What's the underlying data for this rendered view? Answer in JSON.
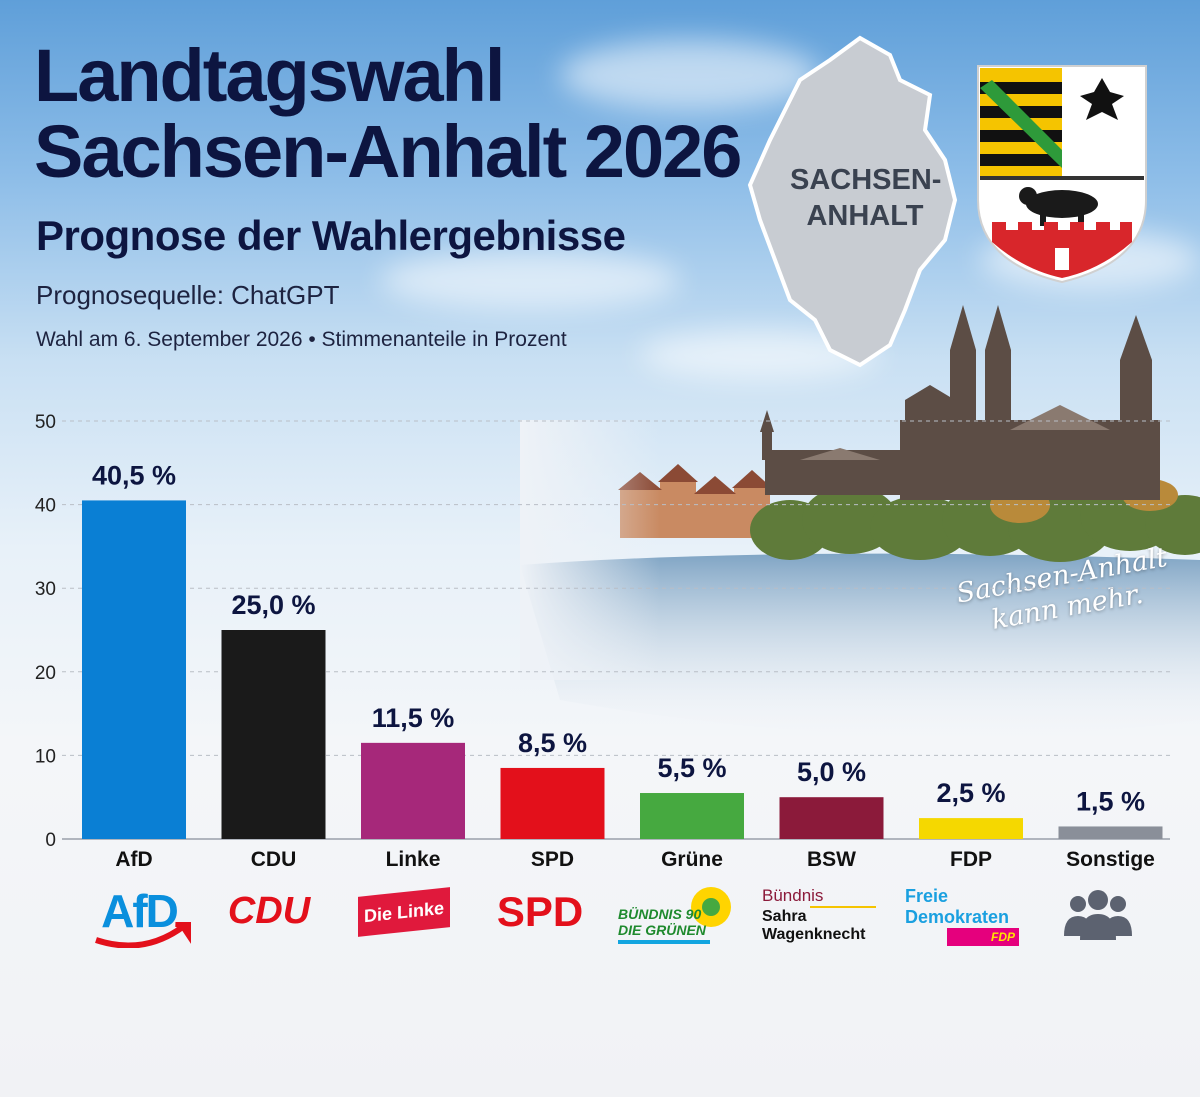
{
  "header": {
    "title_line1": "Landtagswahl",
    "title_line2": "Sachsen-Anhalt 2026",
    "subtitle": "Prognose der Wahlergebnisse",
    "source": "Prognosequelle: ChatGPT",
    "note": "Wahl am 6. September 2026 • Stimmenanteile in Prozent"
  },
  "map": {
    "label_line1": "SACHSEN-",
    "label_line2": "ANHALT"
  },
  "slogan": {
    "line1": "Sachsen-Anhalt",
    "line2": "kann mehr."
  },
  "logos": {
    "afd": "AfD",
    "cdu": "CDU",
    "linke": "Die Linke",
    "spd": "SPD",
    "gruene_line1": "BÜNDNIS 90",
    "gruene_line2": "DIE GRÜNEN",
    "bsw_line1": "Bündnis",
    "bsw_line2": "Sahra",
    "bsw_line3": "Wagenknecht",
    "fdp_line1": "Freie",
    "fdp_line2": "Demokraten",
    "fdp_line3": "FDP",
    "sonstige_icon": "people-group-icon"
  },
  "chart_data": {
    "type": "bar",
    "categories": [
      "AfD",
      "CDU",
      "Linke",
      "SPD",
      "Grüne",
      "BSW",
      "FDP",
      "Sonstige"
    ],
    "values": [
      40.5,
      25.0,
      11.5,
      8.5,
      5.5,
      5.0,
      2.5,
      1.5
    ],
    "data_labels": [
      "40,5 %",
      "25,0 %",
      "11,5 %",
      "8,5 %",
      "5,5 %",
      "5,0 %",
      "2,5 %",
      "1,5 %"
    ],
    "colors": [
      "#0a7fd4",
      "#1a1a1a",
      "#a6287a",
      "#e3101b",
      "#46a940",
      "#8b1a3a",
      "#f5d800",
      "#8a8f99"
    ],
    "yticks": [
      "0",
      "10",
      "20",
      "30",
      "40",
      "50"
    ],
    "ylim": [
      0,
      50
    ],
    "grid": true
  }
}
